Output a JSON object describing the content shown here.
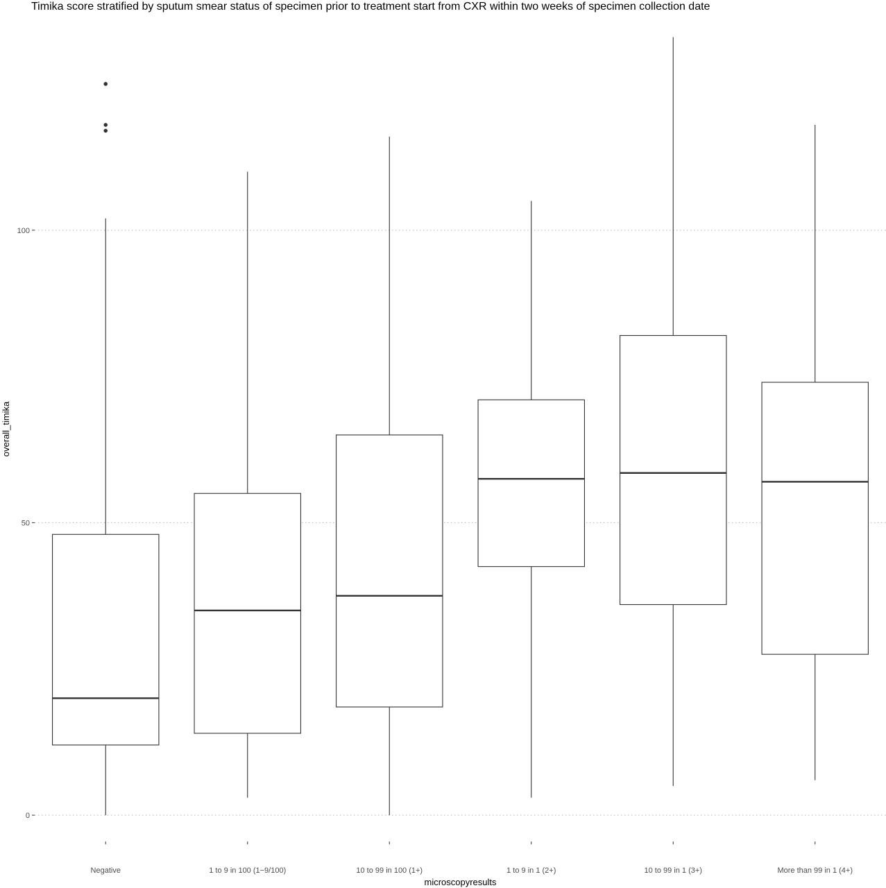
{
  "chart_data": {
    "type": "boxplot",
    "title": "Timika score stratified by sputum smear status of specimen prior to treatment start from CXR within two weeks of specimen collection date",
    "xlabel": "microscopyresults",
    "ylabel": "overall_timika",
    "ylim": [
      -4.5,
      136.5
    ],
    "yticks": [
      0,
      50,
      100
    ],
    "grid": "horizontal-dotted-major",
    "categories": [
      "Negative",
      "1 to 9 in 100 (1−9/100)",
      "10 to 99 in 100 (1+)",
      "1 to 9 in 1 (2+)",
      "10 to 99 in 1 (3+)",
      "More than 99 in 1 (4+)"
    ],
    "boxes": [
      {
        "category": "Negative",
        "whisker_low": 0,
        "q1": 12,
        "median": 20,
        "q3": 48,
        "whisker_high": 102,
        "outliers": [
          117,
          118,
          125
        ]
      },
      {
        "category": "1 to 9 in 100 (1−9/100)",
        "whisker_low": 3,
        "q1": 14,
        "median": 35,
        "q3": 55,
        "whisker_high": 110,
        "outliers": []
      },
      {
        "category": "10 to 99 in 100 (1+)",
        "whisker_low": 0,
        "q1": 18.5,
        "median": 37.5,
        "q3": 65,
        "whisker_high": 116,
        "outliers": []
      },
      {
        "category": "1 to 9 in 1 (2+)",
        "whisker_low": 3,
        "q1": 42.5,
        "median": 57.5,
        "q3": 71,
        "whisker_high": 105,
        "outliers": []
      },
      {
        "category": "10 to 99 in 1 (3+)",
        "whisker_low": 5,
        "q1": 36,
        "median": 58.5,
        "q3": 82,
        "whisker_high": 133,
        "outliers": []
      },
      {
        "category": "More than 99 in 1 (4+)",
        "whisker_low": 6,
        "q1": 27.5,
        "median": 57,
        "q3": 74,
        "whisker_high": 118,
        "outliers": []
      }
    ]
  }
}
